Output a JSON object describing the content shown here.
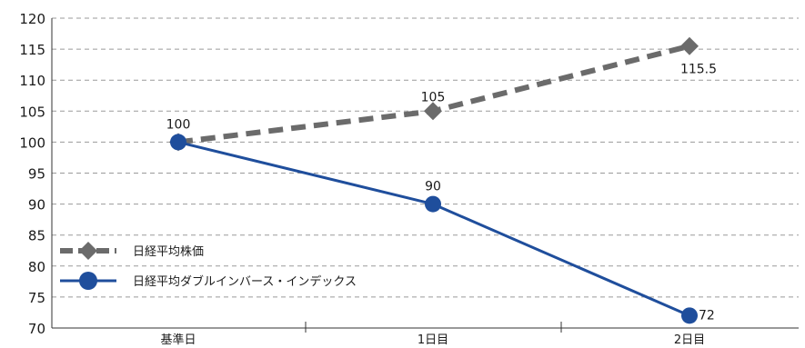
{
  "chart_data": {
    "type": "line",
    "categories": [
      "基準日",
      "1日目",
      "2日目"
    ],
    "ylim": [
      70,
      120
    ],
    "yticks": [
      70,
      75,
      80,
      85,
      90,
      95,
      100,
      105,
      110,
      115,
      120
    ],
    "grid": true,
    "legend_position": "bottom-left",
    "series": [
      {
        "name": "日経平均株価",
        "values": [
          100,
          105,
          115.5
        ],
        "labels": [
          "",
          "105",
          "115.5"
        ],
        "color": "#6b6b6b",
        "line_style": "dashed",
        "marker": "diamond"
      },
      {
        "name": "日経平均ダブルインバース・インデックス",
        "values": [
          100,
          90,
          72
        ],
        "labels": [
          "100",
          "90",
          "72"
        ],
        "color": "#1f4e9c",
        "line_style": "solid",
        "marker": "circle"
      }
    ]
  }
}
